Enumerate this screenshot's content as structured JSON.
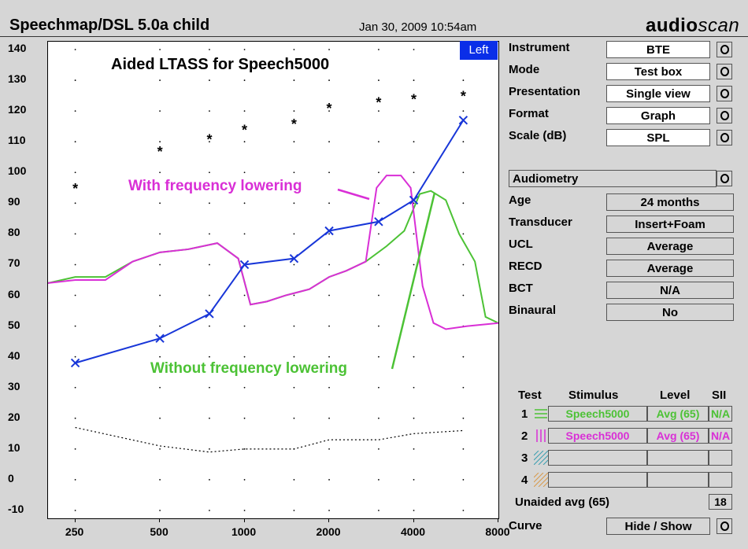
{
  "header": {
    "title": "Speechmap/DSL 5.0a child",
    "datetime": "Jan 30, 2009 10:54am",
    "brand_a": "audio",
    "brand_b": "scan"
  },
  "plot": {
    "side_button": "Left",
    "plot_title": "Aided LTASS for Speech5000",
    "annotation_pink": "With frequency lowering",
    "annotation_green": "Without frequency lowering"
  },
  "colors": {
    "blue": "#1836d8",
    "pink": "#d92fd6",
    "green": "#4cc235",
    "side_button_bg": "#0a2ee8"
  },
  "chart_data": {
    "type": "line",
    "x_scale": "log",
    "x_ticks": [
      250,
      500,
      1000,
      2000,
      4000,
      8000
    ],
    "x_tick_labels": [
      "250",
      "500",
      "1000",
      "2000",
      "4000",
      "8000"
    ],
    "ylim": [
      -10,
      140
    ],
    "y_ticks": [
      -10,
      0,
      10,
      20,
      30,
      40,
      50,
      60,
      70,
      80,
      90,
      100,
      110,
      120,
      130,
      140
    ],
    "ucl_stars": {
      "x": [
        250,
        500,
        750,
        1000,
        1500,
        2000,
        3000,
        4000,
        6000
      ],
      "y": [
        95,
        107,
        111,
        114,
        116,
        121,
        123,
        124,
        125
      ]
    },
    "threshold_dotted": {
      "x": [
        250,
        500,
        750,
        1000,
        1500,
        2000,
        3000,
        4000,
        6000
      ],
      "y": [
        17,
        11,
        9,
        10,
        10,
        13,
        13,
        15,
        16
      ]
    },
    "blue_targets": {
      "x": [
        250,
        500,
        750,
        1000,
        1500,
        2000,
        3000,
        4000,
        6000
      ],
      "y": [
        38,
        46,
        54,
        70,
        72,
        81,
        84,
        91,
        117
      ]
    },
    "series": [
      {
        "name": "Without frequency lowering",
        "x": [
          200,
          250,
          320,
          400,
          500,
          630,
          800,
          950,
          1050,
          1200,
          1400,
          1700,
          2000,
          2300,
          2700,
          3200,
          3700,
          4200,
          4600,
          5200,
          5800,
          6600,
          7200,
          8000
        ],
        "y": [
          64,
          66,
          66,
          71,
          74,
          75,
          77,
          72,
          57,
          58,
          60,
          62,
          66,
          68,
          71,
          76,
          81,
          93,
          94,
          91,
          80,
          71,
          53,
          51
        ]
      },
      {
        "name": "With frequency lowering",
        "x": [
          200,
          250,
          320,
          400,
          500,
          630,
          800,
          950,
          1050,
          1200,
          1400,
          1700,
          2000,
          2300,
          2700,
          2950,
          3200,
          3600,
          3900,
          4300,
          4700,
          5200,
          6200,
          8000
        ],
        "y": [
          64,
          65,
          65,
          71,
          74,
          75,
          77,
          72,
          57,
          58,
          60,
          62,
          66,
          68,
          71,
          95,
          99,
          99,
          95,
          63,
          51,
          49,
          50,
          51
        ]
      }
    ]
  },
  "settings": {
    "instrument": {
      "label": "Instrument",
      "value": "BTE"
    },
    "mode": {
      "label": "Mode",
      "value": "Test box"
    },
    "presentation": {
      "label": "Presentation",
      "value": "Single view"
    },
    "format": {
      "label": "Format",
      "value": "Graph"
    },
    "scale": {
      "label": "Scale (dB)",
      "value": "SPL"
    }
  },
  "audiometry": {
    "header": "Audiometry",
    "rows": [
      {
        "label": "Age",
        "value": "24 months"
      },
      {
        "label": "Transducer",
        "value": "Insert+Foam"
      },
      {
        "label": "UCL",
        "value": "Average"
      },
      {
        "label": "RECD",
        "value": "Average"
      },
      {
        "label": "BCT",
        "value": "N/A"
      },
      {
        "label": "Binaural",
        "value": "No"
      }
    ]
  },
  "tests": {
    "headers": {
      "test": "Test",
      "stimulus": "Stimulus",
      "level": "Level",
      "sii": "SII"
    },
    "rows": [
      {
        "num": "1",
        "stimulus": "Speech5000",
        "level": "Avg (65)",
        "sii": "N/A"
      },
      {
        "num": "2",
        "stimulus": "Speech5000",
        "level": "Avg (65)",
        "sii": "N/A"
      },
      {
        "num": "3",
        "stimulus": "",
        "level": "",
        "sii": ""
      },
      {
        "num": "4",
        "stimulus": "",
        "level": "",
        "sii": ""
      }
    ],
    "unaided_label": "Unaided avg (65)",
    "unaided_value": "18"
  },
  "curve": {
    "label": "Curve",
    "value": "Hide / Show"
  }
}
